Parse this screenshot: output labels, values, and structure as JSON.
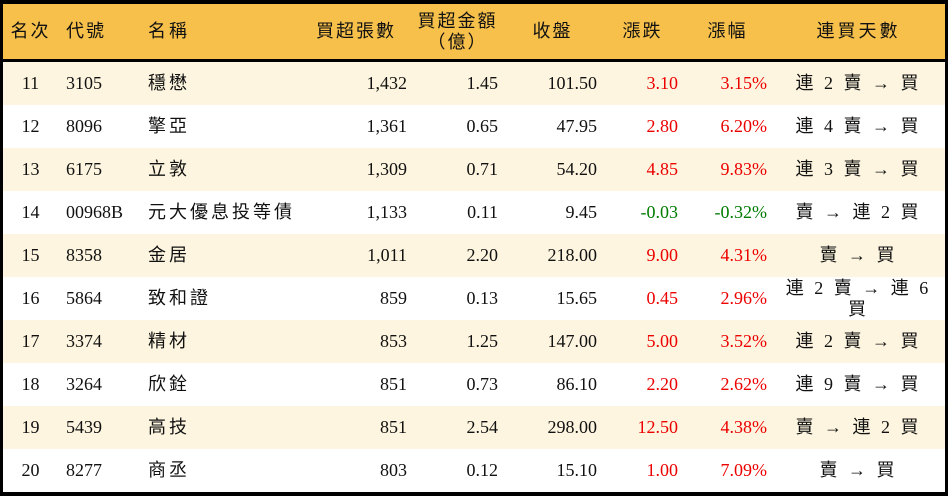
{
  "chart_data": {
    "type": "table",
    "title": "",
    "columns": [
      {
        "key": "rank",
        "label": "名次"
      },
      {
        "key": "code",
        "label": "代號"
      },
      {
        "key": "name",
        "label": "名稱"
      },
      {
        "key": "volume",
        "label": "買超張數"
      },
      {
        "key": "amount",
        "label": "買超金額\n（億）"
      },
      {
        "key": "close",
        "label": "收盤"
      },
      {
        "key": "change",
        "label": "漲跌"
      },
      {
        "key": "pct",
        "label": "漲幅"
      },
      {
        "key": "days",
        "label": "連買天數"
      }
    ],
    "rows": [
      {
        "rank": "11",
        "code": "3105",
        "name": "穩懋",
        "volume": "1,432",
        "amount": "1.45",
        "close": "101.50",
        "change": "3.10",
        "pct": "3.15%",
        "days": "連 2 賣 → 買"
      },
      {
        "rank": "12",
        "code": "8096",
        "name": "擎亞",
        "volume": "1,361",
        "amount": "0.65",
        "close": "47.95",
        "change": "2.80",
        "pct": "6.20%",
        "days": "連 4 賣 → 買"
      },
      {
        "rank": "13",
        "code": "6175",
        "name": "立敦",
        "volume": "1,309",
        "amount": "0.71",
        "close": "54.20",
        "change": "4.85",
        "pct": "9.83%",
        "days": "連 3 賣 → 買"
      },
      {
        "rank": "14",
        "code": "00968B",
        "name": "元大優息投等債",
        "volume": "1,133",
        "amount": "0.11",
        "close": "9.45",
        "change": "-0.03",
        "pct": "-0.32%",
        "days": "賣 → 連 2 買"
      },
      {
        "rank": "15",
        "code": "8358",
        "name": "金居",
        "volume": "1,011",
        "amount": "2.20",
        "close": "218.00",
        "change": "9.00",
        "pct": "4.31%",
        "days": "賣 → 買"
      },
      {
        "rank": "16",
        "code": "5864",
        "name": "致和證",
        "volume": "859",
        "amount": "0.13",
        "close": "15.65",
        "change": "0.45",
        "pct": "2.96%",
        "days": "連 2 賣 → 連 6 買"
      },
      {
        "rank": "17",
        "code": "3374",
        "name": "精材",
        "volume": "853",
        "amount": "1.25",
        "close": "147.00",
        "change": "5.00",
        "pct": "3.52%",
        "days": "連 2 賣 → 買"
      },
      {
        "rank": "18",
        "code": "3264",
        "name": "欣銓",
        "volume": "851",
        "amount": "0.73",
        "close": "86.10",
        "change": "2.20",
        "pct": "2.62%",
        "days": "連 9 賣 → 買"
      },
      {
        "rank": "19",
        "code": "5439",
        "name": "高技",
        "volume": "851",
        "amount": "2.54",
        "close": "298.00",
        "change": "12.50",
        "pct": "4.38%",
        "days": "賣 → 連 2 買"
      },
      {
        "rank": "20",
        "code": "8277",
        "name": "商丞",
        "volume": "803",
        "amount": "0.12",
        "close": "15.10",
        "change": "1.00",
        "pct": "7.09%",
        "days": "賣 → 買"
      }
    ],
    "colors": {
      "header_bg": "#F7C04B",
      "row_alt_bg": "#FDF5DF",
      "row_bg": "#FFFFFF",
      "up_text": "#EC0000",
      "down_text": "#007C00",
      "border": "#000000"
    },
    "layout_hints": {
      "grid": "off",
      "rank_range": "11-20",
      "signed_columns": [
        "change",
        "pct"
      ]
    }
  }
}
